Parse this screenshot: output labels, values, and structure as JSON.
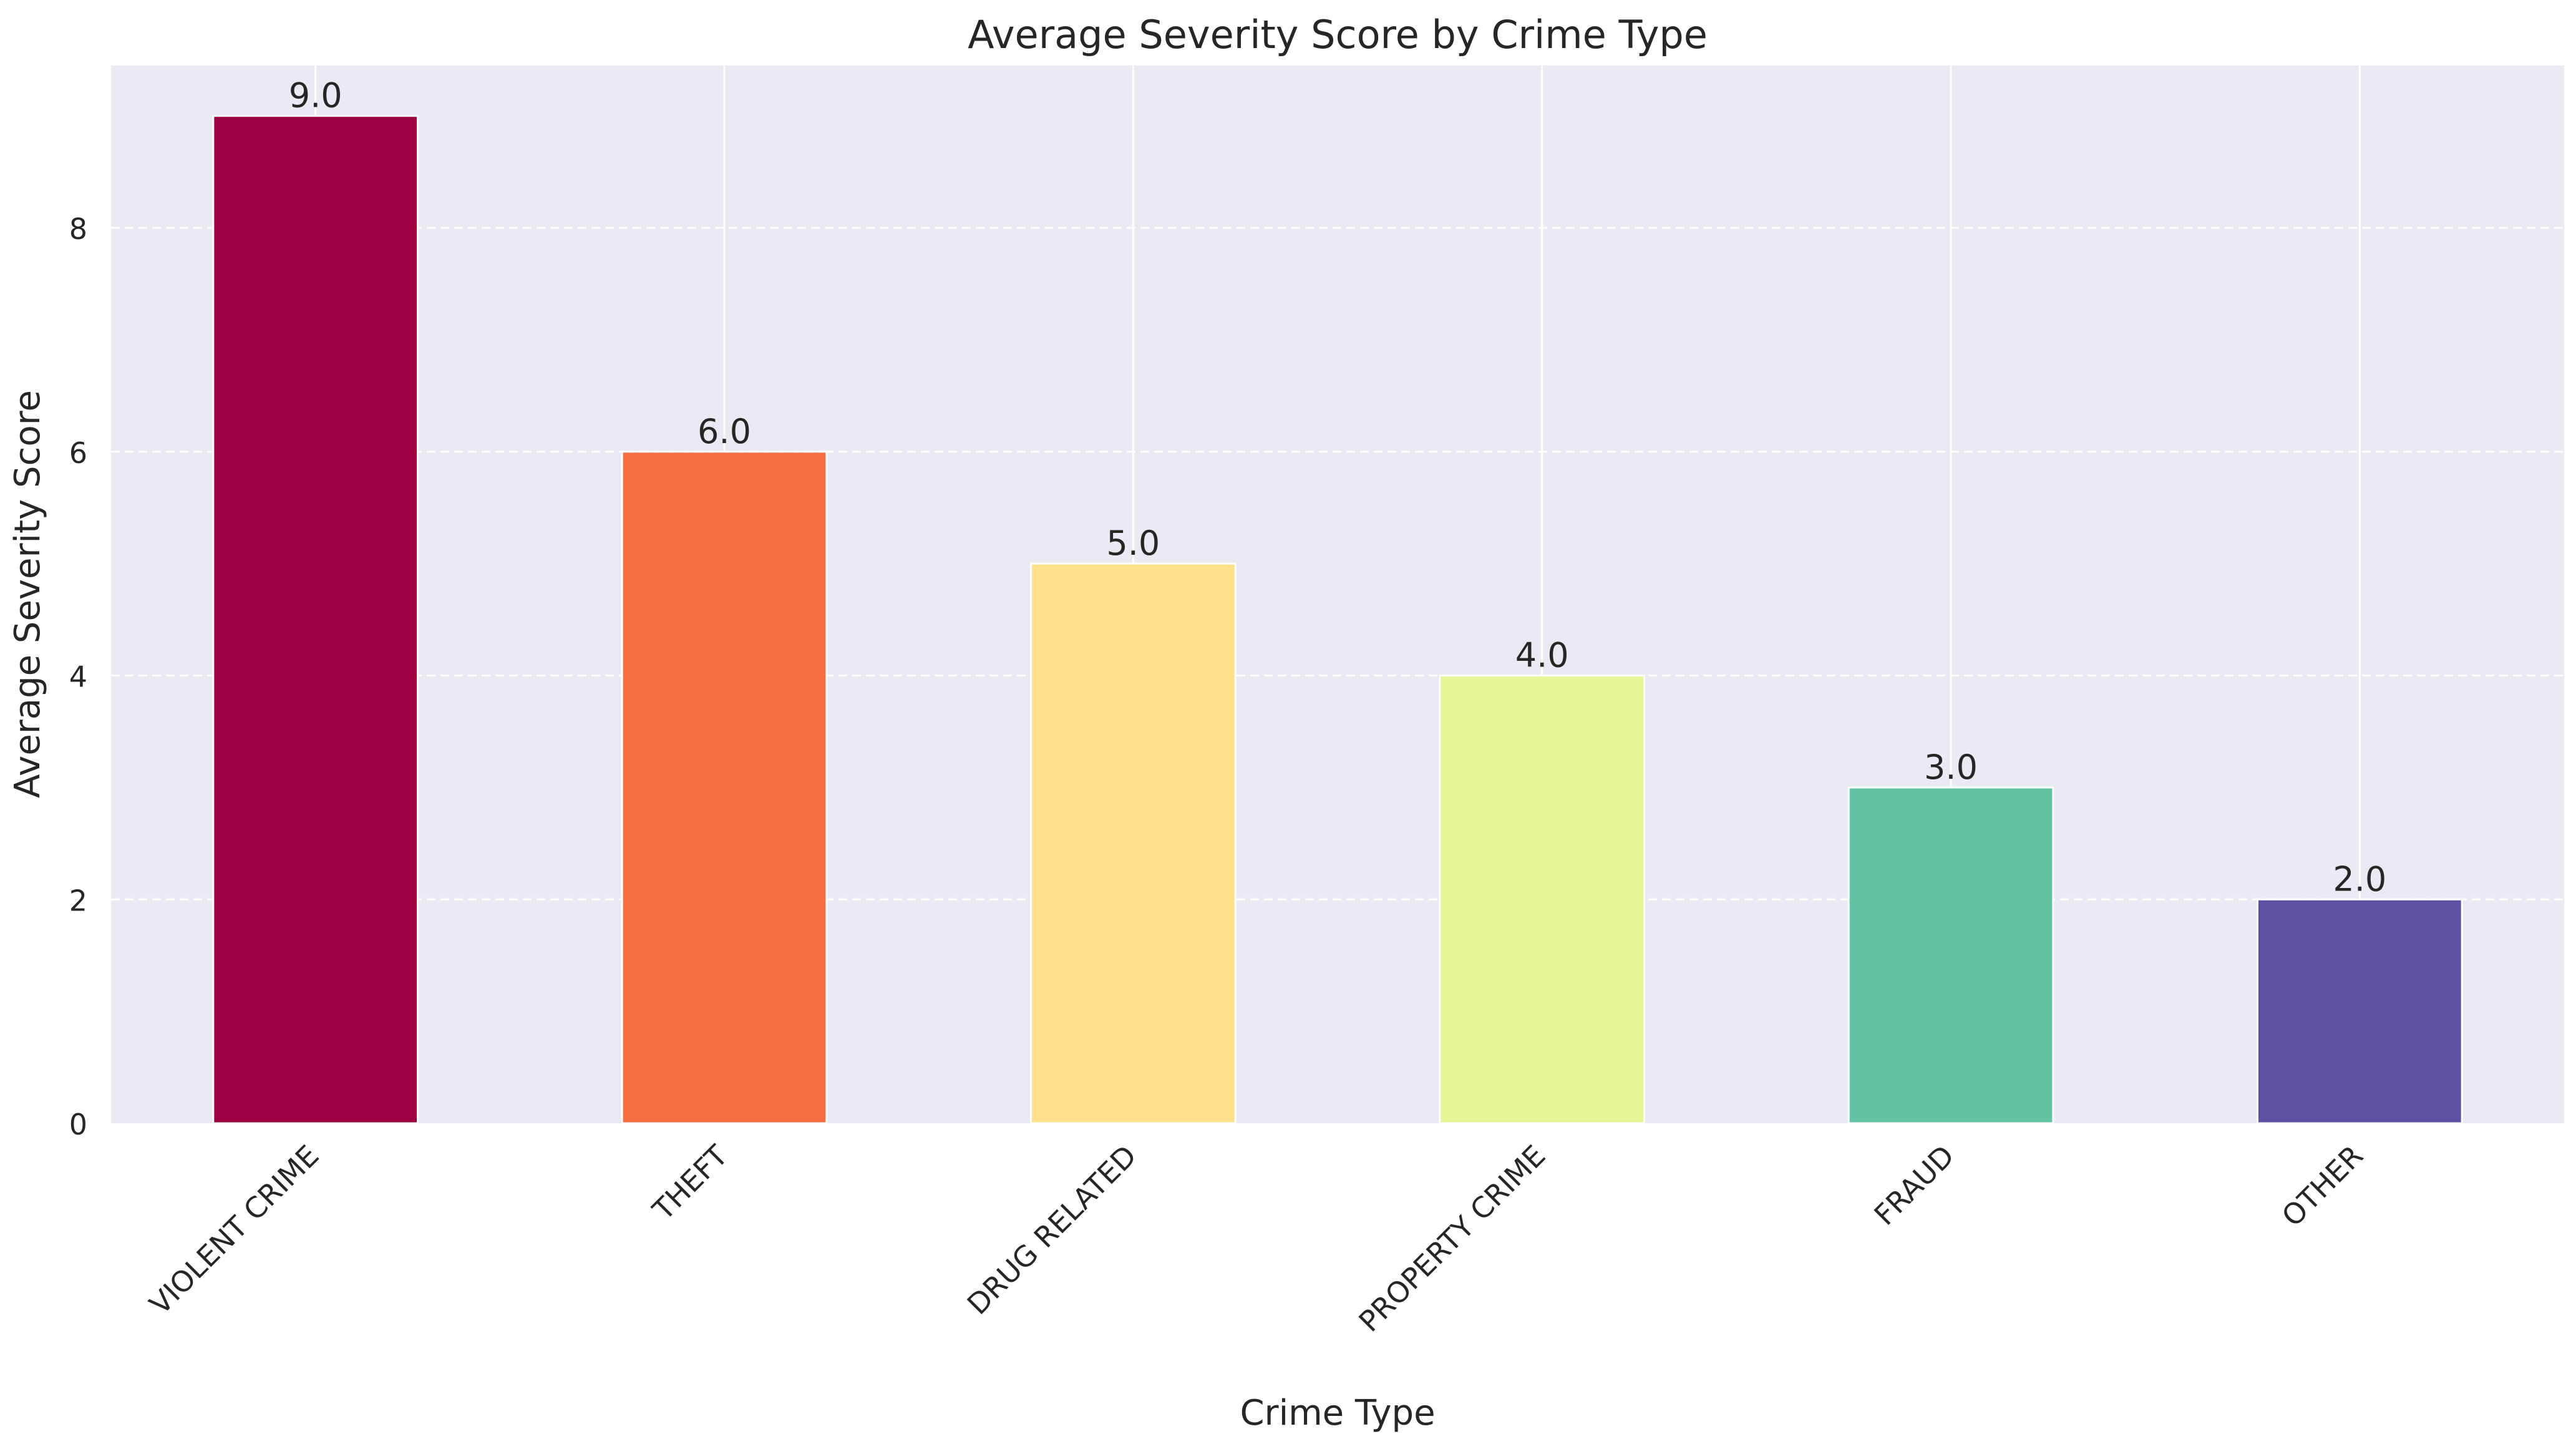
{
  "chart_data": {
    "type": "bar",
    "title": "Average Severity Score by Crime Type",
    "xlabel": "Crime Type",
    "ylabel": "Average Severity Score",
    "categories": [
      "VIOLENT CRIME",
      "THEFT",
      "DRUG RELATED",
      "PROPERTY CRIME",
      "FRAUD",
      "OTHER"
    ],
    "values": [
      9.0,
      6.0,
      5.0,
      4.0,
      3.0,
      2.0
    ],
    "value_labels": [
      "9.0",
      "6.0",
      "5.0",
      "4.0",
      "3.0",
      "2.0"
    ],
    "colors": [
      "#9e0142",
      "#f46d43",
      "#fee08b",
      "#e6f598",
      "#66c2a5",
      "#5e4fa2"
    ],
    "ylim": [
      0,
      9.45
    ],
    "yticks": [
      0,
      2,
      4,
      6,
      8
    ],
    "ytick_labels": [
      "0",
      "2",
      "4",
      "6",
      "8"
    ],
    "grid": true,
    "y_grid_style": "dashed",
    "x_grid_style": "solid",
    "background_color": "#eaeaf2",
    "legend": "none"
  }
}
